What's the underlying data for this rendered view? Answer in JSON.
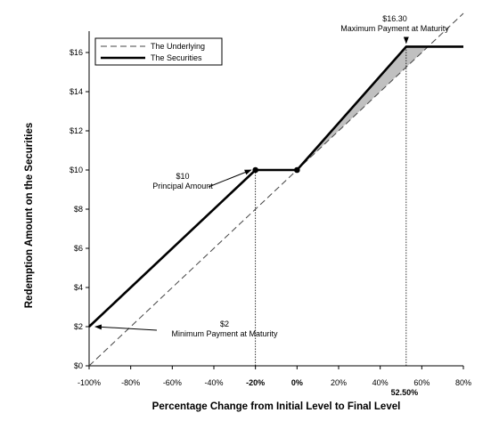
{
  "chart_data": {
    "type": "line",
    "title": "",
    "xlabel": "Percentage Change from Initial Level to Final Level",
    "ylabel": "Redemption Amount on the Securities",
    "xlim": [
      -100,
      80
    ],
    "ylim": [
      0,
      17
    ],
    "x_ticks": [
      -100,
      -80,
      -60,
      -40,
      -20,
      0,
      20,
      40,
      60,
      80
    ],
    "x_tick_labels": [
      "-100%",
      "-80%",
      "-60%",
      "-40%",
      "-20%",
      "0%",
      "20%",
      "40%",
      "60%",
      "80%"
    ],
    "x_bold_ticks": [
      "-20%",
      "0%"
    ],
    "y_ticks": [
      0,
      2,
      4,
      6,
      8,
      10,
      12,
      14,
      16
    ],
    "y_tick_labels": [
      "$0",
      "$2",
      "$4",
      "$6",
      "$8",
      "$10",
      "$12",
      "$14",
      "$16"
    ],
    "extra_x_label": {
      "x": 52.5,
      "text": "52.50%"
    },
    "grid": false,
    "legend_position": "top-left",
    "series": [
      {
        "name": "The Underlying",
        "style": "dashed",
        "color": "#444444",
        "points": [
          [
            -100,
            0
          ],
          [
            80,
            18
          ]
        ]
      },
      {
        "name": "The Securities",
        "style": "solid",
        "color": "#000000",
        "points": [
          [
            -100,
            2
          ],
          [
            -20,
            10
          ],
          [
            0,
            10
          ],
          [
            52.5,
            16.3
          ],
          [
            80,
            16.3
          ]
        ]
      }
    ],
    "markers": [
      [
        -20,
        10
      ],
      [
        0,
        10
      ]
    ],
    "shaded_region": {
      "color": "#c0c0c0",
      "polygon": [
        [
          0,
          10
        ],
        [
          52.5,
          16.3
        ],
        [
          63,
          16.3
        ]
      ]
    },
    "reference_lines": [
      {
        "x": -20,
        "from": 0,
        "to": 10
      },
      {
        "x": 52.5,
        "from": 0,
        "to": 16.3
      }
    ],
    "annotations": [
      {
        "id": "principal",
        "lines": [
          "$10",
          "Principal Amount"
        ],
        "arrow_to": [
          -20,
          10
        ]
      },
      {
        "id": "minimum",
        "lines": [
          "$2",
          "Minimum Payment at Maturity"
        ],
        "arrow_to": [
          -100,
          2
        ]
      },
      {
        "id": "maximum",
        "lines": [
          "$16.30",
          "Maximum Payment at Maturity"
        ],
        "arrow_to": [
          52.5,
          16.3
        ]
      }
    ]
  }
}
